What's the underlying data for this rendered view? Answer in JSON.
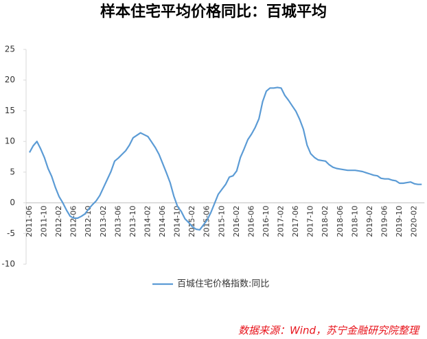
{
  "chart_data": {
    "type": "line",
    "title": "样本住宅平均价格同比：百城平均",
    "source": "数据来源：Wind，苏宁金融研究院整理",
    "categories": [
      "2011-06",
      null,
      null,
      null,
      "2011-10",
      null,
      null,
      null,
      "2012-02",
      null,
      null,
      null,
      "2012-06",
      null,
      null,
      null,
      "2012-10",
      null,
      null,
      null,
      "2013-02",
      null,
      null,
      null,
      "2013-06",
      null,
      null,
      null,
      "2013-10",
      null,
      null,
      null,
      "2014-02",
      null,
      null,
      null,
      "2014-06",
      null,
      null,
      null,
      "2014-10",
      null,
      null,
      null,
      "2015-02",
      null,
      null,
      null,
      "2015-06",
      null,
      null,
      null,
      "2015-10",
      null,
      null,
      null,
      "2016-02",
      null,
      null,
      null,
      "2016-06",
      null,
      null,
      null,
      "2016-10",
      null,
      null,
      null,
      "2017-02",
      null,
      null,
      null,
      "2017-06",
      null,
      null,
      null,
      "2017-10",
      null,
      null,
      null,
      "2018-02",
      null,
      null,
      null,
      "2018-06",
      null,
      null,
      null,
      "2018-10",
      null,
      null,
      null,
      "2019-02",
      null,
      null,
      null,
      "2019-06",
      null,
      null,
      null,
      "2019-10",
      null,
      null,
      null,
      "2020-02",
      null,
      null
    ],
    "series": [
      {
        "name": "百城住宅价格指数:同比",
        "color": "#5b9bd5",
        "values": [
          8.2,
          9.3,
          10.0,
          8.8,
          7.4,
          5.6,
          4.3,
          2.5,
          1.0,
          0.0,
          -1.2,
          -2.2,
          -2.5,
          -2.5,
          -2.2,
          -1.8,
          -1.0,
          -0.3,
          0.3,
          1.2,
          2.5,
          3.8,
          5.1,
          6.8,
          7.3,
          7.9,
          8.5,
          9.4,
          10.6,
          11.0,
          11.4,
          11.1,
          10.8,
          9.9,
          9.0,
          7.9,
          6.4,
          4.9,
          3.3,
          1.1,
          -0.6,
          -1.4,
          -2.6,
          -3.2,
          -3.9,
          -4.3,
          -4.4,
          -3.6,
          -2.8,
          -1.6,
          -0.1,
          1.4,
          2.2,
          3.0,
          4.2,
          4.4,
          5.2,
          7.4,
          8.8,
          10.3,
          11.2,
          12.3,
          13.7,
          16.5,
          18.2,
          18.7,
          18.7,
          18.8,
          18.7,
          17.5,
          16.7,
          15.8,
          14.9,
          13.6,
          12.0,
          9.4,
          8.0,
          7.4,
          7.0,
          6.9,
          6.8,
          6.2,
          5.8,
          5.6,
          5.5,
          5.4,
          5.3,
          5.3,
          5.3,
          5.2,
          5.1,
          4.9,
          4.7,
          4.5,
          4.4,
          4.0,
          3.9,
          3.9,
          3.7,
          3.6,
          3.2,
          3.2,
          3.3,
          3.4,
          3.1,
          3.0,
          3.0
        ]
      }
    ],
    "ylim": [
      -10,
      25
    ],
    "yticks": [
      -10,
      -5,
      0,
      5,
      10,
      15,
      20,
      25
    ],
    "grid": false,
    "legend": "bottom"
  }
}
